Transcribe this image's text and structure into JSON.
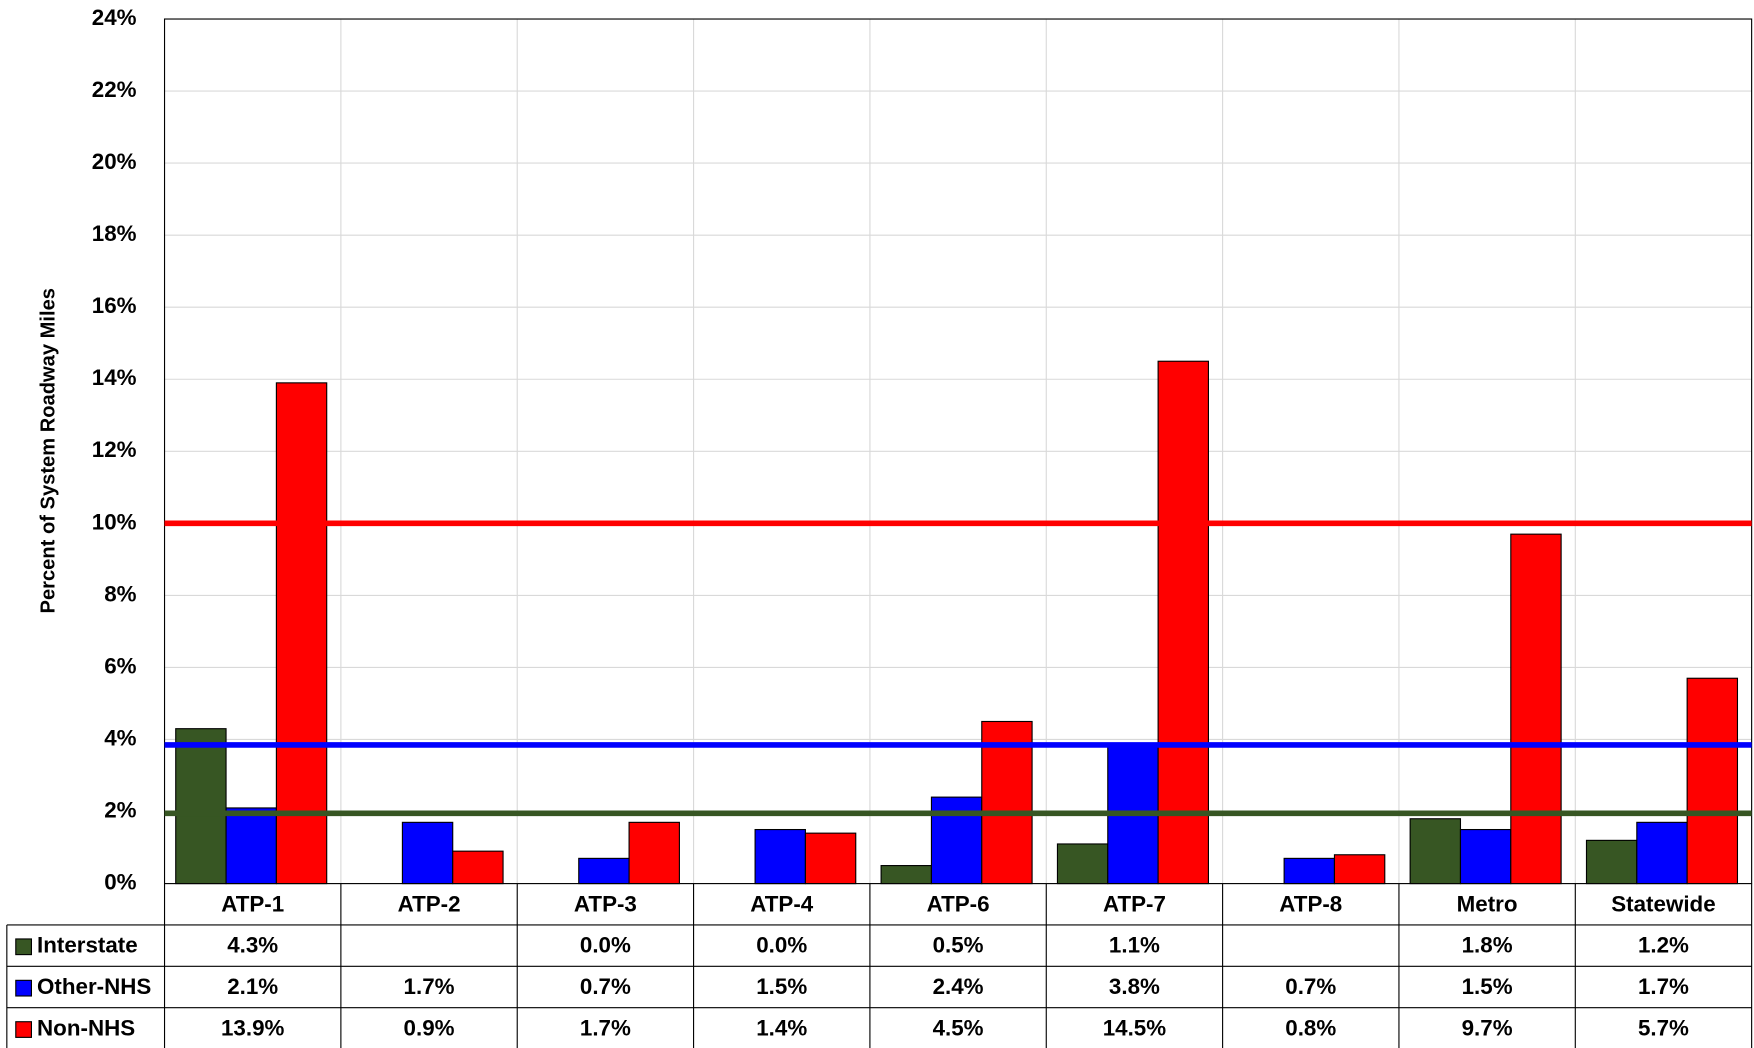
{
  "chart_data": {
    "type": "bar",
    "y_label": "Percent of System Roadway Miles",
    "categories": [
      "ATP-1",
      "ATP-2",
      "ATP-3",
      "ATP-4",
      "ATP-6",
      "ATP-7",
      "ATP-8",
      "Metro",
      "Statewide"
    ],
    "series": [
      {
        "name": "Interstate",
        "color": "#375623",
        "values": [
          4.3,
          null,
          0.0,
          0.0,
          0.5,
          1.1,
          null,
          1.8,
          1.2
        ],
        "value_labels": [
          "4.3%",
          null,
          "0.0%",
          "0.0%",
          "0.5%",
          "1.1%",
          null,
          "1.8%",
          "1.2%"
        ]
      },
      {
        "name": "Other-NHS",
        "color": "#0000ff",
        "values": [
          2.1,
          1.7,
          0.7,
          1.5,
          2.4,
          3.8,
          0.7,
          1.5,
          1.7
        ],
        "value_labels": [
          "2.1%",
          "1.7%",
          "0.7%",
          "1.5%",
          "2.4%",
          "3.8%",
          "0.7%",
          "1.5%",
          "1.7%"
        ]
      },
      {
        "name": "Non-NHS",
        "color": "#ff0000",
        "values": [
          13.9,
          0.9,
          1.7,
          1.4,
          4.5,
          14.5,
          0.8,
          9.7,
          5.7
        ],
        "value_labels": [
          "13.9%",
          "0.9%",
          "1.7%",
          "1.4%",
          "4.5%",
          "14.5%",
          "0.8%",
          "9.7%",
          "5.7%"
        ]
      }
    ],
    "reference_lines": [
      {
        "value": 10,
        "color": "#ff0000"
      },
      {
        "value": 3.85,
        "color": "#0000ff"
      },
      {
        "value": 1.95,
        "color": "#375623"
      }
    ],
    "ylim": [
      0,
      24
    ],
    "yticks": [
      {
        "value": 0,
        "label": "0%"
      },
      {
        "value": 2,
        "label": "2%"
      },
      {
        "value": 4,
        "label": "4%"
      },
      {
        "value": 6,
        "label": "6%"
      },
      {
        "value": 8,
        "label": "8%"
      },
      {
        "value": 10,
        "label": "10%"
      },
      {
        "value": 12,
        "label": "12%"
      },
      {
        "value": 14,
        "label": "14%"
      },
      {
        "value": 16,
        "label": "16%"
      },
      {
        "value": 18,
        "label": "18%"
      },
      {
        "value": 20,
        "label": "20%"
      },
      {
        "value": 22,
        "label": "22%"
      },
      {
        "value": 24,
        "label": "24%"
      }
    ],
    "grid": true
  }
}
